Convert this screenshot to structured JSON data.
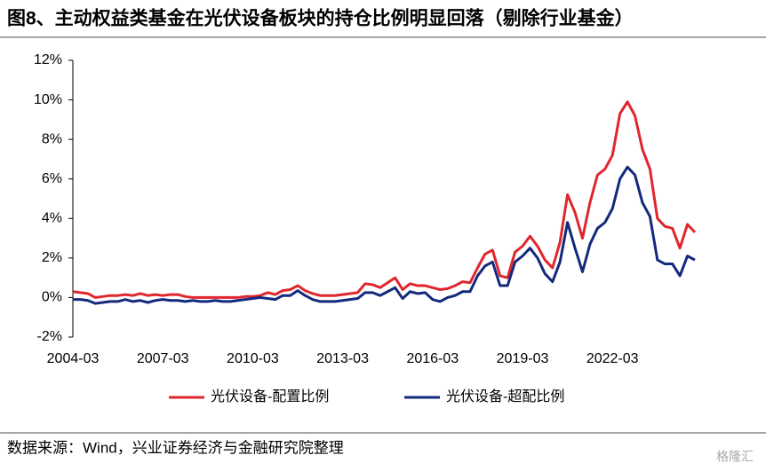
{
  "chart_data": {
    "type": "line",
    "title": "图8、主动权益类基金在光伏设备板块的持仓比例明显回落（剔除行业基金）",
    "source": "数据来源：Wind，兴业证券经济与金融研究院整理",
    "watermark": "格隆汇",
    "categories": [
      "2004-03",
      null,
      null,
      null,
      null,
      null,
      null,
      null,
      null,
      null,
      null,
      null,
      "2007-03",
      null,
      null,
      null,
      null,
      null,
      null,
      null,
      null,
      null,
      null,
      null,
      "2010-03",
      null,
      null,
      null,
      null,
      null,
      null,
      null,
      null,
      null,
      null,
      null,
      "2013-03",
      null,
      null,
      null,
      null,
      null,
      null,
      null,
      null,
      null,
      null,
      null,
      "2016-03",
      null,
      null,
      null,
      null,
      null,
      null,
      null,
      null,
      null,
      null,
      null,
      "2019-03",
      null,
      null,
      null,
      null,
      null,
      null,
      null,
      null,
      null,
      null,
      null,
      "2022-03",
      null,
      null,
      null,
      null,
      null,
      null,
      null,
      null,
      null,
      null,
      null
    ],
    "series": [
      {
        "name": "光伏设备-配置比例",
        "color": "#e0262d",
        "values": [
          0.3,
          0.25,
          0.2,
          0.0,
          0.05,
          0.1,
          0.1,
          0.15,
          0.1,
          0.2,
          0.1,
          0.15,
          0.1,
          0.15,
          0.15,
          0.05,
          0.0,
          0.0,
          0.0,
          0.0,
          0.0,
          0.0,
          0.0,
          0.05,
          0.05,
          0.1,
          0.25,
          0.15,
          0.35,
          0.4,
          0.6,
          0.35,
          0.2,
          0.1,
          0.1,
          0.1,
          0.15,
          0.2,
          0.25,
          0.7,
          0.65,
          0.5,
          0.75,
          1.0,
          0.4,
          0.7,
          0.6,
          0.6,
          0.5,
          0.4,
          0.45,
          0.6,
          0.8,
          0.75,
          1.5,
          2.2,
          2.4,
          1.1,
          1.0,
          2.3,
          2.6,
          3.1,
          2.6,
          1.9,
          1.5,
          2.8,
          5.2,
          4.3,
          3.0,
          4.8,
          6.2,
          6.5,
          7.2,
          9.3,
          9.9,
          9.2,
          7.5,
          6.5,
          4.0,
          3.6,
          3.5,
          2.5,
          3.7,
          3.3
        ]
      },
      {
        "name": "光伏设备-超配比例",
        "color": "#132a7c",
        "values": [
          -0.1,
          -0.1,
          -0.15,
          -0.3,
          -0.25,
          -0.2,
          -0.2,
          -0.1,
          -0.2,
          -0.15,
          -0.25,
          -0.15,
          -0.1,
          -0.15,
          -0.15,
          -0.2,
          -0.15,
          -0.2,
          -0.2,
          -0.15,
          -0.2,
          -0.2,
          -0.15,
          -0.1,
          -0.05,
          0.0,
          -0.05,
          -0.1,
          0.1,
          0.1,
          0.35,
          0.1,
          -0.1,
          -0.2,
          -0.2,
          -0.2,
          -0.15,
          -0.1,
          -0.05,
          0.25,
          0.25,
          0.1,
          0.3,
          0.5,
          -0.05,
          0.3,
          0.2,
          0.25,
          -0.1,
          -0.2,
          0.0,
          0.1,
          0.3,
          0.3,
          1.1,
          1.6,
          1.8,
          0.6,
          0.6,
          1.8,
          2.1,
          2.5,
          2.0,
          1.2,
          0.8,
          1.8,
          3.8,
          2.5,
          1.3,
          2.7,
          3.5,
          3.8,
          4.5,
          6.0,
          6.6,
          6.2,
          4.8,
          4.1,
          1.9,
          1.7,
          1.7,
          1.1,
          2.1,
          1.9
        ]
      }
    ],
    "ylim": [
      -2,
      12
    ],
    "yticks": [
      {
        "value": -2,
        "label": "-2%"
      },
      {
        "value": 0,
        "label": "0%"
      },
      {
        "value": 2,
        "label": "2%"
      },
      {
        "value": 4,
        "label": "4%"
      },
      {
        "value": 6,
        "label": "6%"
      },
      {
        "value": 8,
        "label": "8%"
      },
      {
        "value": 10,
        "label": "10%"
      },
      {
        "value": 12,
        "label": "12%"
      }
    ]
  }
}
